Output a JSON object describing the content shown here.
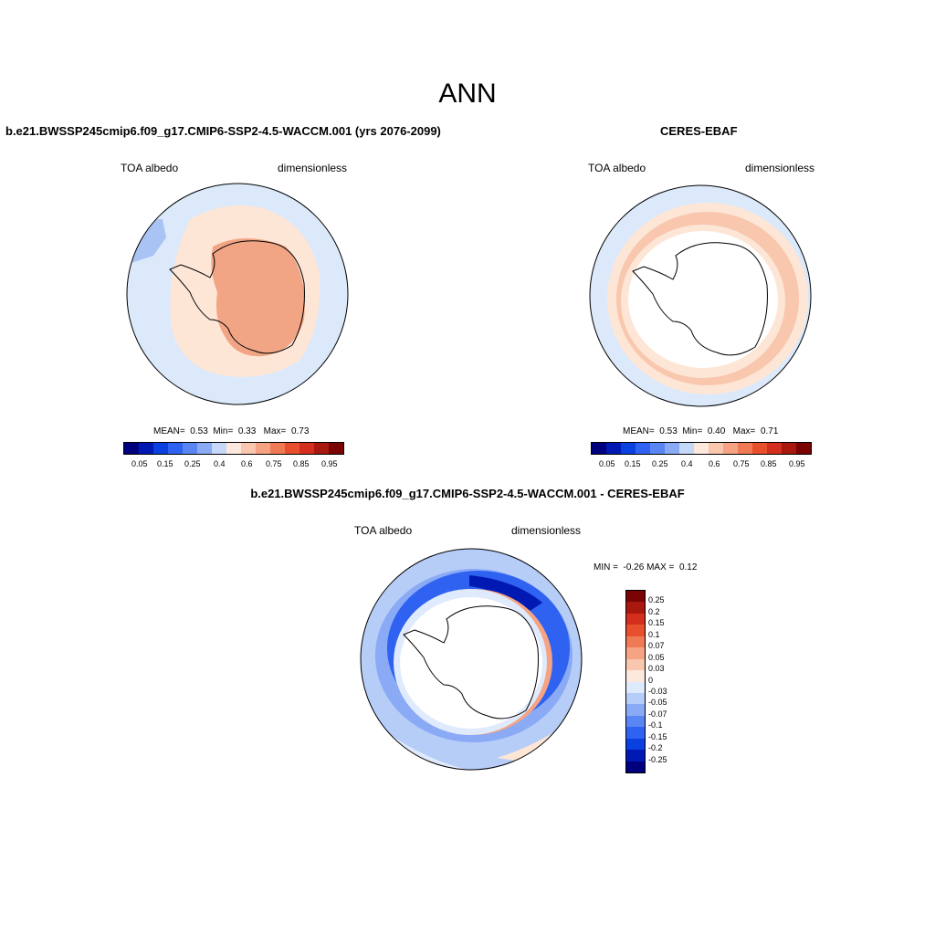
{
  "page_title": "ANN",
  "colormap": [
    "#00007f",
    "#0019b2",
    "#0a3fe0",
    "#2f62f0",
    "#5a86f3",
    "#8aaaf6",
    "#c5d8f8",
    "#fde8dd",
    "#f9c6ae",
    "#f5a383",
    "#ef7a55",
    "#e8502d",
    "#d42e1e",
    "#a8180f",
    "#7a0403"
  ],
  "diff_colormap": [
    "#7a0403",
    "#a8180f",
    "#d42e1e",
    "#e8502d",
    "#ef7a55",
    "#f5a383",
    "#f9c6ae",
    "#fde8dd",
    "#dfeafc",
    "#b6cdf8",
    "#8aaaf6",
    "#5a86f3",
    "#2f62f0",
    "#0a3fe0",
    "#0019b2",
    "#00007f"
  ],
  "chart_data": [
    {
      "type": "heatmap",
      "title": "b.e21.BWSSP245cmip6.f09_g17.CMIP6-SSP2-4.5-WACCM.001 (yrs 2076-2099)",
      "left_label": "TOA albedo",
      "right_label": "dimensionless",
      "stats": {
        "mean_label": "MEAN=",
        "mean": "0.53",
        "min_label": "Min=",
        "min": "0.33",
        "max_label": "Max=",
        "max": "0.73"
      },
      "colorbar_ticks": [
        "0.05",
        "0.15",
        "0.25",
        "0.4",
        "0.6",
        "0.75",
        "0.85",
        "0.95"
      ]
    },
    {
      "type": "heatmap",
      "title": "CERES-EBAF",
      "left_label": "TOA albedo",
      "right_label": "dimensionless",
      "stats": {
        "mean_label": "MEAN=",
        "mean": "0.53",
        "min_label": "Min=",
        "min": "0.40",
        "max_label": "Max=",
        "max": "0.71"
      },
      "colorbar_ticks": [
        "0.05",
        "0.15",
        "0.25",
        "0.4",
        "0.6",
        "0.75",
        "0.85",
        "0.95"
      ]
    },
    {
      "type": "heatmap",
      "title": "b.e21.BWSSP245cmip6.f09_g17.CMIP6-SSP2-4.5-WACCM.001 - CERES-EBAF",
      "left_label": "TOA albedo",
      "right_label": "dimensionless",
      "stats": {
        "min_label": "MIN =",
        "min": "-0.26",
        "max_label": "MAX =",
        "max": "0.12"
      },
      "colorbar_ticks": [
        "0.25",
        "0.2",
        "0.15",
        "0.1",
        "0.07",
        "0.05",
        "0.03",
        "0",
        "-0.03",
        "-0.05",
        "-0.07",
        "-0.1",
        "-0.15",
        "-0.2",
        "-0.25"
      ]
    }
  ]
}
